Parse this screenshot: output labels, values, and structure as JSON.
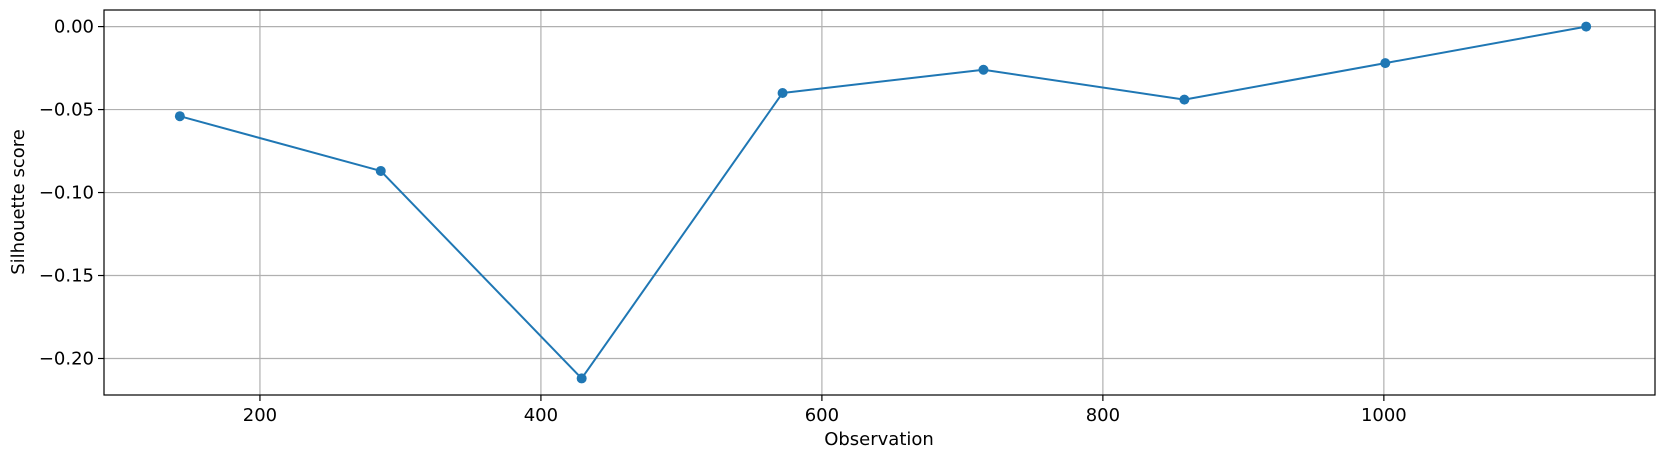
{
  "chart_data": {
    "type": "line",
    "title": "",
    "xlabel": "Observation",
    "ylabel": "Silhouette score",
    "xlim": [
      89,
      1193
    ],
    "ylim": [
      -0.222,
      0.01
    ],
    "grid": true,
    "x_ticks": [
      200,
      400,
      600,
      800,
      1000
    ],
    "x_tick_labels": [
      "200",
      "400",
      "600",
      "800",
      "1000"
    ],
    "y_ticks": [
      0.0,
      -0.05,
      -0.1,
      -0.15,
      -0.2
    ],
    "y_tick_labels": [
      "0.00",
      "−0.05",
      "−0.10",
      "−0.15",
      "−0.20"
    ],
    "series": [
      {
        "color": "#1f77b4",
        "marker": "circle",
        "x": [
          143,
          286,
          429,
          572,
          715,
          858,
          1001,
          1144
        ],
        "y": [
          -0.054,
          -0.087,
          -0.212,
          -0.04,
          -0.026,
          -0.044,
          -0.022,
          0.0
        ]
      }
    ]
  }
}
